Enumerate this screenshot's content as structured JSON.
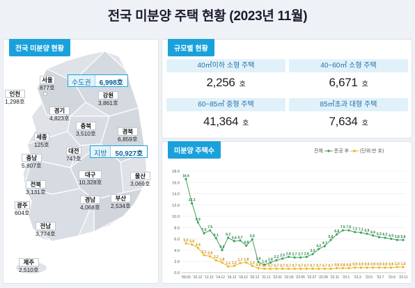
{
  "title": "전국 미분양 주택 현황 (2023년 11월)",
  "map_panel": {
    "tag": "전국 미분양 현황",
    "capital": {
      "label": "수도권",
      "value": "6,998호"
    },
    "local": {
      "label": "지방",
      "value": "50,927호"
    },
    "regions": [
      {
        "name": "서울",
        "value": "877호"
      },
      {
        "name": "인천",
        "value": "1,298호"
      },
      {
        "name": "강원",
        "value": "3,861호"
      },
      {
        "name": "경기",
        "value": "4,823호"
      },
      {
        "name": "충북",
        "value": "3,510호"
      },
      {
        "name": "경북",
        "value": "6,859호"
      },
      {
        "name": "세종",
        "value": "125호"
      },
      {
        "name": "대전",
        "value": "747호"
      },
      {
        "name": "충남",
        "value": "5,807호"
      },
      {
        "name": "대구",
        "value": "10,328호"
      },
      {
        "name": "울산",
        "value": "3,069호"
      },
      {
        "name": "전북",
        "value": "3,131호"
      },
      {
        "name": "경남",
        "value": "4,068호"
      },
      {
        "name": "부산",
        "value": "2,534호"
      },
      {
        "name": "광주",
        "value": "604호"
      },
      {
        "name": "전남",
        "value": "3,774호"
      },
      {
        "name": "제주",
        "value": "2,510호"
      }
    ]
  },
  "size_panel": {
    "tag": "규모별 현황",
    "unit": "호",
    "cells": [
      {
        "label": "40㎡이하 소형 주택",
        "value": "2,256"
      },
      {
        "label": "40~60㎡ 소형 주택",
        "value": "6,671"
      },
      {
        "label": "60~85㎡ 중형 주택",
        "value": "41,364"
      },
      {
        "label": "85㎡초과 대형 주택",
        "value": "7,634"
      }
    ]
  },
  "chart_panel": {
    "tag": "미분양 주택수",
    "legend_total": "전체",
    "legend_completed": "준공 후",
    "unit_note": "(단위:만 호)"
  },
  "colors": {
    "accent": "#1aa1dc",
    "total_series": "#3aa35b",
    "completed_series": "#f0b41c"
  },
  "chart_data": {
    "type": "line",
    "ylim": [
      0,
      18
    ],
    "yticks": [
      "0.0",
      "2.0",
      "4.0",
      "6.0",
      "8.0",
      "10.0",
      "12.0",
      "14.0",
      "16.0",
      "18.0"
    ],
    "x_tick_labels": [
      "'09.03",
      "'10.12",
      "'12.12",
      "'14.12",
      "'16.12",
      "'18.12",
      "'20.12",
      "'21.11",
      "'22.01",
      "'22.03",
      "'22.05",
      "'22.07",
      "'22.09",
      "'22.11",
      "'23.1",
      "'23.3",
      "'23.5",
      "'23.7",
      "'23.9",
      "'23.11"
    ],
    "series": [
      {
        "name": "전체",
        "values": [
          16.6,
          12.3,
          8.9,
          7.0,
          7.5,
          6.1,
          4.0,
          6.2,
          5.6,
          5.7,
          4.8,
          5.9,
          1.9,
          1.4,
          1.8,
          2.2,
          2.5,
          2.8,
          2.7,
          2.7,
          2.8,
          3.3,
          4.2,
          4.7,
          5.8,
          6.8,
          7.5,
          7.5,
          7.2,
          7.1,
          6.9,
          6.6,
          6.3,
          6.2,
          6.0,
          5.8,
          5.8
        ],
        "labels": [
          "16.6",
          "12.3",
          "8.9",
          "7.0",
          "7.5",
          "6.1",
          "4.0",
          "6.2",
          "5.6",
          "5.7",
          "4.8",
          "5.9",
          "1.9",
          "1.4",
          "1.8",
          "2.2",
          "2.5",
          "2.8",
          "2.7",
          "2.7",
          "2.8",
          "3.3",
          "4.2",
          "4.7",
          "5.8",
          "6.8",
          "7.5",
          "7.5",
          "7.2",
          "7.1",
          "6.9",
          "6.6",
          "6.3",
          "6.2",
          "6.0",
          "5.8",
          "5.8"
        ]
      },
      {
        "name": "준공 후",
        "values": [
          5.2,
          5.0,
          4.4,
          3.1,
          2.9,
          2.2,
          1.8,
          1.1,
          1.2,
          1.7,
          1.8,
          1.2,
          0.8,
          0.7,
          0.7,
          0.7,
          0.7,
          0.7,
          0.7,
          0.7,
          0.7,
          0.7,
          0.7,
          0.7,
          0.7,
          0.8,
          0.8,
          0.8,
          0.9,
          0.9,
          0.9,
          0.9,
          0.9,
          0.9,
          0.9,
          1.0,
          1.0
        ],
        "labels": [
          "5.2",
          "5.0",
          "4.4",
          "3.1",
          "2.9",
          "2.2",
          "1.8",
          "1.1",
          "1.2",
          "1.7",
          "1.8",
          "1.2",
          "0.8",
          "0.7",
          "0.7",
          "0.7",
          "0.7",
          "0.7",
          "0.7",
          "0.7",
          "0.7",
          "0.7",
          "0.7",
          "0.7",
          "0.7",
          "0.8",
          "0.8",
          "0.8",
          "0.9",
          "0.9",
          "0.9",
          "0.9",
          "0.9",
          "0.9",
          "0.9",
          "1.0",
          "1.0"
        ]
      }
    ]
  }
}
